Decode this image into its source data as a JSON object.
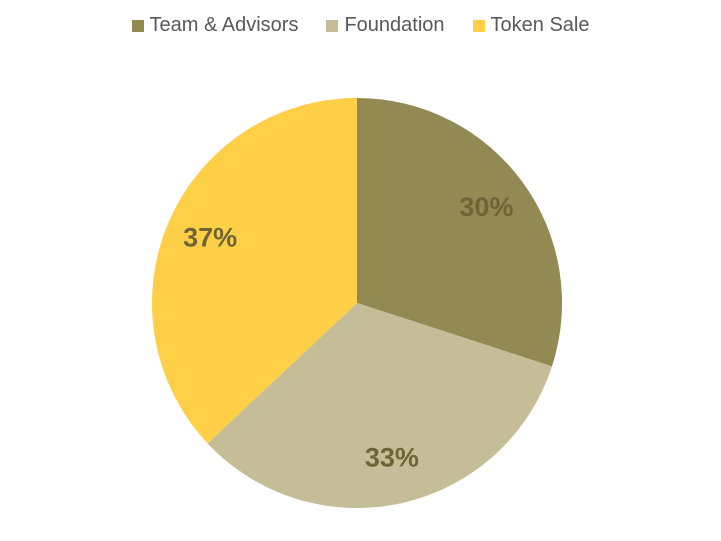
{
  "chart_data": {
    "type": "pie",
    "categories": [
      "Team & Advisors",
      "Foundation",
      "Token Sale"
    ],
    "values": [
      30,
      33,
      37
    ],
    "value_labels": [
      "30%",
      "33%",
      "37%"
    ],
    "colors": [
      "#938953",
      "#c4bd97",
      "#ffcf48"
    ],
    "legend": "top"
  }
}
